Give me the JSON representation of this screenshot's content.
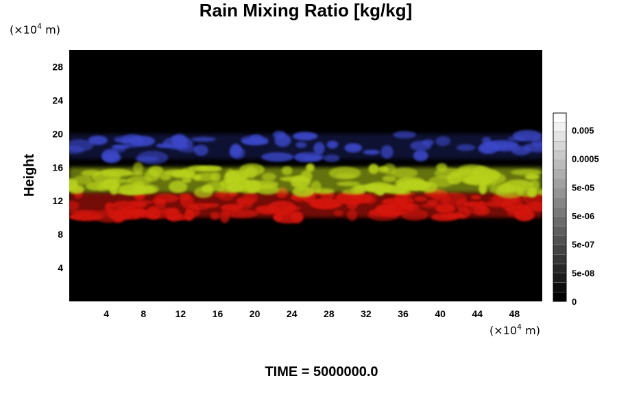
{
  "chart_data": {
    "type": "heatmap",
    "title": "Rain Mixing Ratio [kg/kg]",
    "ylabel": "Height",
    "xlabel": "",
    "y_unit_prefix": "(×10",
    "y_unit_exp": "4",
    "y_unit_suffix": " m)",
    "x_unit_prefix": "(×10",
    "x_unit_exp": "4",
    "x_unit_suffix": " m)",
    "xlim": [
      0,
      51
    ],
    "ylim": [
      0,
      30
    ],
    "x_ticks": [
      "4",
      "8",
      "12",
      "16",
      "20",
      "24",
      "28",
      "32",
      "36",
      "40",
      "44",
      "48"
    ],
    "y_ticks": [
      "4",
      "8",
      "12",
      "16",
      "20",
      "24",
      "28"
    ],
    "background_color": "#000000",
    "layers": [
      {
        "name": "blue",
        "color": "#3a46c8",
        "y_range": [
          17,
          20
        ]
      },
      {
        "name": "yellow-green",
        "color": "#b8d21c",
        "y_range": [
          13,
          16
        ]
      },
      {
        "name": "red",
        "color": "#d41810",
        "y_range": [
          10,
          13
        ]
      }
    ],
    "colorbar": {
      "labels": [
        "0.005",
        "0.0005",
        "5e-05",
        "5e-06",
        "5e-07",
        "5e-08",
        "0"
      ],
      "level_count": 20
    },
    "footer": "TIME = 5000000.0"
  }
}
